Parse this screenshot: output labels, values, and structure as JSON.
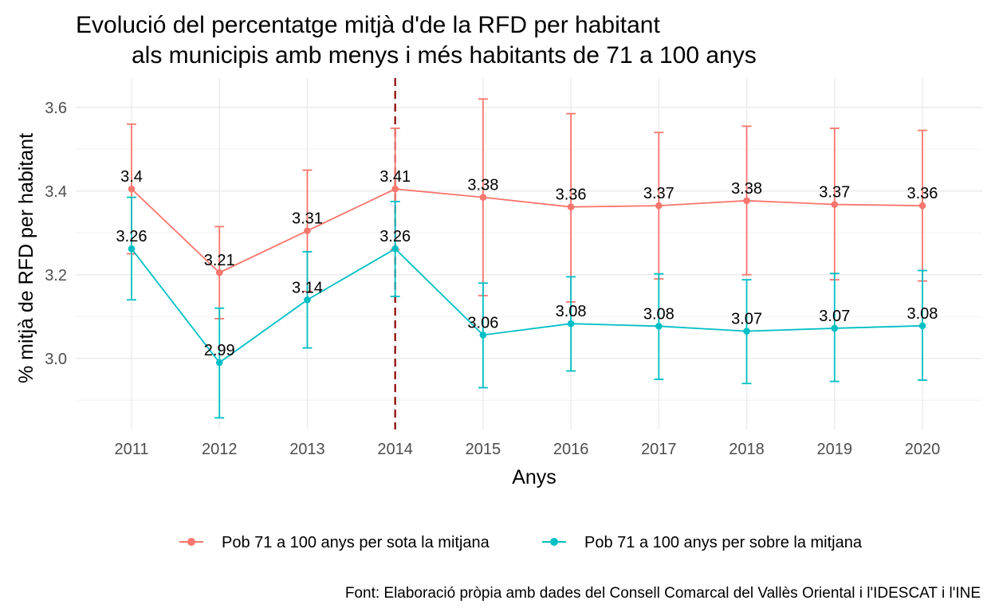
{
  "chart_data": {
    "type": "line",
    "title_lines": [
      "Evolució del percentatge mitjà d'de la RFD per habitant",
      "als municipis amb menys i més habitants de 71 a 100 anys"
    ],
    "xlabel": "Anys",
    "ylabel": "% mitjà de RFD per habitant",
    "caption": "Font: Elaboració pròpia amb dades del Consell Comarcal del Vallès Oriental i l'IDESCAT i l'INE",
    "categories": [
      "2011",
      "2012",
      "2013",
      "2014",
      "2015",
      "2016",
      "2017",
      "2018",
      "2019",
      "2020"
    ],
    "y_ticks": [
      "3.0",
      "3.2",
      "3.4",
      "3.6"
    ],
    "ylim": [
      2.83,
      3.67
    ],
    "y_tick_values": [
      3.0,
      3.2,
      3.4,
      3.6
    ],
    "grid": true,
    "legend_position": "bottom",
    "reference_line": {
      "x": "2014",
      "style": "dashed",
      "color": "#8b0000"
    },
    "series": [
      {
        "name": "Pob 71 a 100 anys per sota la mitjana",
        "color": "#f8766d",
        "values": [
          3.405,
          3.205,
          3.305,
          3.405,
          3.385,
          3.362,
          3.365,
          3.377,
          3.368,
          3.365
        ],
        "labels": [
          "3.4",
          "3.21",
          "3.31",
          "3.41",
          "3.38",
          "3.36",
          "3.37",
          "3.38",
          "3.37",
          "3.36"
        ],
        "error_low": [
          3.25,
          3.095,
          3.16,
          3.26,
          3.15,
          3.135,
          3.19,
          3.2,
          3.188,
          3.185
        ],
        "error_high": [
          3.56,
          3.315,
          3.45,
          3.55,
          3.62,
          3.585,
          3.54,
          3.555,
          3.55,
          3.545
        ]
      },
      {
        "name": "Pob 71 a 100 anys per sobre la mitjana",
        "color": "#00bfc4",
        "values": [
          3.262,
          2.99,
          3.14,
          3.262,
          3.056,
          3.083,
          3.077,
          3.065,
          3.072,
          3.078
        ],
        "labels": [
          "3.26",
          "2.99",
          "3.14",
          "3.26",
          "3.06",
          "3.08",
          "3.08",
          "3.07",
          "3.07",
          "3.08"
        ],
        "error_low": [
          3.14,
          2.858,
          3.025,
          3.148,
          2.93,
          2.97,
          2.95,
          2.94,
          2.945,
          2.948
        ],
        "error_high": [
          3.385,
          3.12,
          3.255,
          3.375,
          3.18,
          3.195,
          3.202,
          3.188,
          3.203,
          3.21
        ]
      }
    ]
  }
}
